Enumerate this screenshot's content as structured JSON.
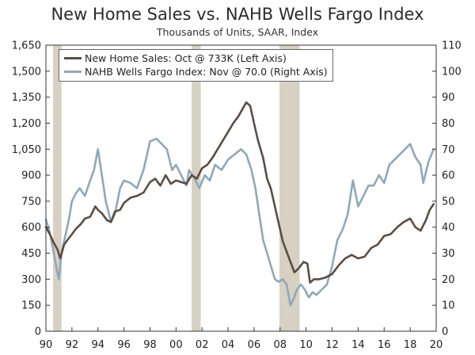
{
  "colors": {
    "sales": "#5b4d43",
    "nahb": "#8fa8b8",
    "recession": "#d6d1c2",
    "axis": "#333333"
  },
  "chart_data": {
    "type": "line",
    "title": "New Home Sales vs. NAHB Wells Fargo Index",
    "subtitle": "Thousands of Units, SAAR, Index",
    "x_range": [
      1990,
      2020
    ],
    "x_ticks": [
      1990,
      1992,
      1994,
      1996,
      1998,
      2000,
      2002,
      2004,
      2006,
      2008,
      2010,
      2012,
      2014,
      2016,
      2018,
      2020
    ],
    "x_tick_labels": [
      "90",
      "92",
      "94",
      "96",
      "98",
      "00",
      "02",
      "04",
      "06",
      "08",
      "10",
      "12",
      "14",
      "16",
      "18",
      "20"
    ],
    "y_left": {
      "range": [
        0,
        1650
      ],
      "ticks": [
        0,
        150,
        300,
        450,
        600,
        750,
        900,
        1050,
        1200,
        1350,
        1500,
        1650
      ],
      "tick_labels": [
        "0",
        "150",
        "300",
        "450",
        "600",
        "750",
        "900",
        "1,050",
        "1,200",
        "1,350",
        "1,500",
        "1,650"
      ]
    },
    "y_right": {
      "range": [
        0,
        110
      ],
      "ticks": [
        0,
        10,
        20,
        30,
        40,
        50,
        60,
        70,
        80,
        90,
        100,
        110
      ],
      "tick_labels": [
        "0",
        "10",
        "20",
        "30",
        "40",
        "50",
        "60",
        "70",
        "80",
        "90",
        "100",
        "110"
      ]
    },
    "recessions": [
      [
        1990.55,
        1991.2
      ],
      [
        2001.2,
        2001.9
      ],
      [
        2007.95,
        2009.5
      ]
    ],
    "legend_position": "top-left",
    "series": [
      {
        "name": "New Home Sales: Oct @ 733K (Left Axis)",
        "axis": "left",
        "x": [
          1990.0,
          1990.3,
          1990.6,
          1990.9,
          1991.1,
          1991.4,
          1991.7,
          1992.0,
          1992.3,
          1992.7,
          1993.0,
          1993.4,
          1993.8,
          1994.0,
          1994.3,
          1994.7,
          1995.0,
          1995.3,
          1995.7,
          1996.0,
          1996.5,
          1997.0,
          1997.5,
          1998.0,
          1998.4,
          1998.8,
          1999.2,
          1999.6,
          2000.0,
          2000.4,
          2000.8,
          2001.2,
          2001.6,
          2002.0,
          2002.4,
          2002.8,
          2003.2,
          2003.6,
          2004.0,
          2004.4,
          2004.8,
          2005.1,
          2005.4,
          2005.7,
          2006.0,
          2006.3,
          2006.7,
          2007.0,
          2007.3,
          2007.6,
          2007.9,
          2008.2,
          2008.5,
          2008.8,
          2009.1,
          2009.4,
          2009.8,
          2010.1,
          2010.3,
          2010.6,
          2011.0,
          2011.5,
          2012.0,
          2012.5,
          2013.0,
          2013.5,
          2014.0,
          2014.5,
          2015.0,
          2015.5,
          2016.0,
          2016.5,
          2017.0,
          2017.5,
          2018.0,
          2018.4,
          2018.8,
          2019.2,
          2019.5,
          2019.8
        ],
        "values": [
          600,
          560,
          510,
          470,
          420,
          500,
          530,
          560,
          590,
          620,
          650,
          660,
          720,
          700,
          680,
          640,
          630,
          690,
          700,
          740,
          770,
          780,
          800,
          860,
          880,
          840,
          900,
          850,
          870,
          860,
          850,
          900,
          880,
          940,
          960,
          1000,
          1050,
          1100,
          1150,
          1200,
          1240,
          1280,
          1320,
          1300,
          1200,
          1100,
          1000,
          880,
          820,
          720,
          620,
          520,
          460,
          400,
          340,
          360,
          400,
          390,
          280,
          300,
          300,
          310,
          330,
          380,
          420,
          440,
          420,
          430,
          480,
          500,
          550,
          560,
          600,
          630,
          650,
          600,
          580,
          640,
          700,
          733
        ]
      },
      {
        "name": "NAHB Wells Fargo Index: Nov @ 70.0 (Right Axis)",
        "axis": "right",
        "x": [
          1990.0,
          1990.3,
          1990.6,
          1990.9,
          1991.0,
          1991.2,
          1991.5,
          1991.8,
          1992.0,
          1992.3,
          1992.6,
          1993.0,
          1993.4,
          1993.7,
          1994.0,
          1994.3,
          1994.6,
          1995.0,
          1995.3,
          1995.7,
          1996.0,
          1996.5,
          1997.0,
          1997.5,
          1998.0,
          1998.5,
          1998.9,
          1999.3,
          1999.7,
          2000.0,
          2000.4,
          2000.8,
          2001.0,
          2001.4,
          2001.8,
          2002.2,
          2002.6,
          2003.0,
          2003.5,
          2004.0,
          2004.5,
          2005.0,
          2005.4,
          2005.8,
          2006.1,
          2006.4,
          2006.7,
          2007.0,
          2007.3,
          2007.6,
          2007.9,
          2008.2,
          2008.5,
          2008.8,
          2009.0,
          2009.3,
          2009.6,
          2009.9,
          2010.2,
          2010.5,
          2010.8,
          2011.2,
          2011.6,
          2012.0,
          2012.4,
          2012.8,
          2013.2,
          2013.6,
          2014.0,
          2014.4,
          2014.8,
          2015.2,
          2015.6,
          2016.0,
          2016.4,
          2016.8,
          2017.2,
          2017.6,
          2018.0,
          2018.4,
          2018.8,
          2019.0,
          2019.4,
          2019.8
        ],
        "values": [
          43,
          38,
          30,
          22,
          20,
          30,
          37,
          44,
          50,
          53,
          55,
          52,
          58,
          62,
          70,
          60,
          50,
          42,
          45,
          55,
          58,
          57,
          55,
          62,
          73,
          74,
          72,
          70,
          62,
          64,
          60,
          56,
          62,
          59,
          55,
          60,
          58,
          64,
          62,
          66,
          68,
          70,
          68,
          62,
          55,
          45,
          35,
          30,
          25,
          20,
          19,
          20,
          18,
          10,
          12,
          16,
          18,
          16,
          13,
          15,
          14,
          16,
          18,
          25,
          35,
          39,
          45,
          58,
          48,
          52,
          56,
          56,
          60,
          57,
          64,
          66,
          68,
          70,
          72,
          67,
          64,
          57,
          65,
          70
        ]
      }
    ]
  }
}
